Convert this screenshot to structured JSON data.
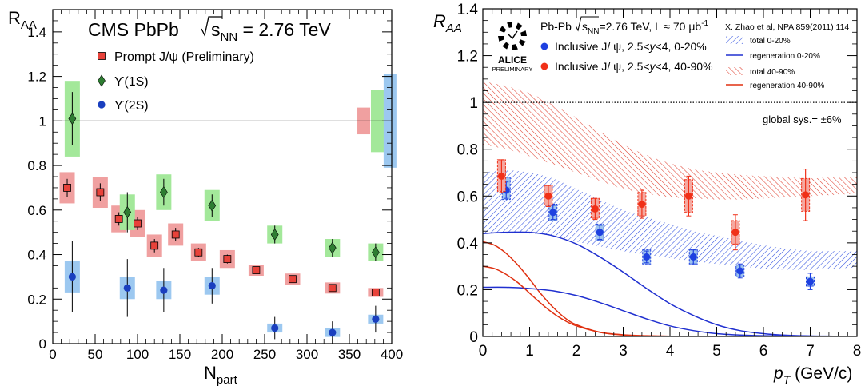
{
  "chart_data": [
    {
      "type": "scatter",
      "title": "CMS PbPb",
      "energy_label": "√sNN = 2.76 TeV",
      "energy_sqrt": "s",
      "energy_sub": "NN",
      "energy_value": " = 2.76 TeV",
      "ylabel_main": "R",
      "ylabel_sub": "AA",
      "xlabel_main": "N",
      "xlabel_sub": "part",
      "xlim": [
        0,
        400
      ],
      "ylim": [
        0,
        1.5
      ],
      "xticks": [
        0,
        50,
        100,
        150,
        200,
        250,
        300,
        350,
        400
      ],
      "yticks": [
        0,
        0.2,
        0.4,
        0.6,
        0.8,
        1,
        1.2,
        1.4
      ],
      "reference_line": 1,
      "legend_position": "top-left",
      "series": [
        {
          "name": "Prompt J/ψ (Preliminary)",
          "marker": "square",
          "color": "#e8423a",
          "box_color": "#f0a0a0",
          "points": [
            {
              "x": 17,
              "y": 0.7,
              "err": 0.04,
              "sys": 0.07
            },
            {
              "x": 56,
              "y": 0.68,
              "err": 0.04,
              "sys": 0.07
            },
            {
              "x": 78,
              "y": 0.56,
              "err": 0.03,
              "sys": 0.06
            },
            {
              "x": 100,
              "y": 0.54,
              "err": 0.03,
              "sys": 0.06
            },
            {
              "x": 120,
              "y": 0.44,
              "err": 0.03,
              "sys": 0.05
            },
            {
              "x": 145,
              "y": 0.49,
              "err": 0.03,
              "sys": 0.05
            },
            {
              "x": 172,
              "y": 0.41,
              "err": 0.02,
              "sys": 0.04
            },
            {
              "x": 206,
              "y": 0.38,
              "err": 0.02,
              "sys": 0.04
            },
            {
              "x": 240,
              "y": 0.33,
              "err": 0.01,
              "sys": 0.025
            },
            {
              "x": 283,
              "y": 0.29,
              "err": 0.01,
              "sys": 0.025
            },
            {
              "x": 330,
              "y": 0.25,
              "err": 0.01,
              "sys": 0.025
            },
            {
              "x": 381,
              "y": 0.23,
              "err": 0.01,
              "sys": 0.02
            }
          ]
        },
        {
          "name": "ϒ(1S)",
          "marker": "diamond",
          "color": "#2e7d32",
          "box_color": "#a3e89a",
          "points": [
            {
              "x": 23,
              "y": 1.01,
              "err": 0.12,
              "sys": 0.17
            },
            {
              "x": 88,
              "y": 0.59,
              "err": 0.09,
              "sys": 0.08
            },
            {
              "x": 131,
              "y": 0.68,
              "err": 0.06,
              "sys": 0.08
            },
            {
              "x": 188,
              "y": 0.62,
              "err": 0.05,
              "sys": 0.07
            },
            {
              "x": 262,
              "y": 0.49,
              "err": 0.04,
              "sys": 0.04
            },
            {
              "x": 330,
              "y": 0.43,
              "err": 0.04,
              "sys": 0.04
            },
            {
              "x": 381,
              "y": 0.41,
              "err": 0.04,
              "sys": 0.04
            }
          ]
        },
        {
          "name": "ϒ(2S)",
          "marker": "circle",
          "color": "#1a3fbf",
          "box_color": "#9cc8f0",
          "points": [
            {
              "x": 23,
              "y": 0.3,
              "err": 0.16,
              "sys": 0.07
            },
            {
              "x": 88,
              "y": 0.25,
              "err": 0.13,
              "sys": 0.05
            },
            {
              "x": 131,
              "y": 0.24,
              "err": 0.1,
              "sys": 0.04
            },
            {
              "x": 188,
              "y": 0.26,
              "err": 0.08,
              "sys": 0.04
            },
            {
              "x": 262,
              "y": 0.07,
              "err": 0.05,
              "sys": 0.02
            },
            {
              "x": 330,
              "y": 0.05,
              "err": 0.05,
              "sys": 0.02
            },
            {
              "x": 381,
              "y": 0.11,
              "err": 0.06,
              "sys": 0.02
            }
          ]
        }
      ],
      "global_uncertainty_boxes": [
        {
          "series": "Prompt J/ψ",
          "x": 367,
          "y": 1.0,
          "half_height": 0.06,
          "color": "#f0a0a0"
        },
        {
          "series": "ϒ(1S)",
          "x": 383,
          "y": 1.0,
          "half_height": 0.14,
          "color": "#a3e89a"
        },
        {
          "series": "ϒ(2S)",
          "x": 398,
          "y": 1.0,
          "half_height": 0.21,
          "color": "#9cc8f0"
        }
      ]
    },
    {
      "type": "scatter",
      "ylabel_main": "R",
      "ylabel_sub": "AA",
      "xlabel_main": "p",
      "xlabel_sub": "T",
      "xlabel_unit": " (GeV/c)",
      "xlim": [
        0,
        8
      ],
      "ylim": [
        0,
        1.4
      ],
      "xticks": [
        0,
        1,
        2,
        3,
        4,
        5,
        6,
        7,
        8
      ],
      "yticks": [
        0,
        0.2,
        0.4,
        0.6,
        0.8,
        1,
        1.2,
        1.4
      ],
      "reference_line": 1,
      "logo_text": "ALICE",
      "logo_subtext": "PRELIMINARY",
      "header_prefix": "Pb-Pb ",
      "header_sqrt": "s",
      "header_sub": "NN",
      "header_suffix": "=2.76 TeV, L ≈ 70 μb",
      "header_sup": "-1",
      "reference": "X. Zhao et al, NPA 859(2011) 114",
      "global_sys": "global sys.=  ±6%",
      "legend_position": "top-left",
      "model_legend_position": "top-right",
      "series": [
        {
          "name": "Inclusive J/ ψ, 2.5<y<4, 0-20%",
          "name_prefix": "Inclusive J/ ψ, 2.5<",
          "name_var": "y",
          "name_suffix": "<4, 0-20%",
          "color": "#1e40e0",
          "points": [
            {
              "x": 0.5,
              "y": 0.625,
              "err": 0.035,
              "sys_lo": 0.04,
              "sys_hi": 0.055
            },
            {
              "x": 1.5,
              "y": 0.53,
              "err": 0.03,
              "sys_lo": 0.035,
              "sys_hi": 0.035
            },
            {
              "x": 2.5,
              "y": 0.445,
              "err": 0.03,
              "sys_lo": 0.035,
              "sys_hi": 0.035
            },
            {
              "x": 3.5,
              "y": 0.34,
              "err": 0.025,
              "sys_lo": 0.03,
              "sys_hi": 0.03
            },
            {
              "x": 4.5,
              "y": 0.34,
              "err": 0.03,
              "sys_lo": 0.03,
              "sys_hi": 0.03
            },
            {
              "x": 5.5,
              "y": 0.28,
              "err": 0.03,
              "sys_lo": 0.025,
              "sys_hi": 0.025
            },
            {
              "x": 7.0,
              "y": 0.235,
              "err": 0.035,
              "sys_lo": 0.02,
              "sys_hi": 0.02
            }
          ]
        },
        {
          "name": "Inclusive J/ ψ, 2.5<y<4, 40-90%",
          "name_prefix": "Inclusive J/ ψ, 2.5<",
          "name_var": "y",
          "name_suffix": "<4, 40-90%",
          "color": "#f03018",
          "points": [
            {
              "x": 0.4,
              "y": 0.685,
              "err": 0.07,
              "sys_lo": 0.065,
              "sys_hi": 0.07
            },
            {
              "x": 1.4,
              "y": 0.6,
              "err": 0.045,
              "sys_lo": 0.04,
              "sys_hi": 0.045
            },
            {
              "x": 2.4,
              "y": 0.545,
              "err": 0.045,
              "sys_lo": 0.04,
              "sys_hi": 0.045
            },
            {
              "x": 3.4,
              "y": 0.565,
              "err": 0.06,
              "sys_lo": 0.05,
              "sys_hi": 0.05
            },
            {
              "x": 4.4,
              "y": 0.6,
              "err": 0.085,
              "sys_lo": 0.07,
              "sys_hi": 0.07
            },
            {
              "x": 5.4,
              "y": 0.445,
              "err": 0.075,
              "sys_lo": 0.05,
              "sys_hi": 0.05
            },
            {
              "x": 6.9,
              "y": 0.605,
              "err": 0.11,
              "sys_lo": 0.07,
              "sys_hi": 0.07
            }
          ]
        }
      ],
      "models": [
        {
          "name": "total 0-20%",
          "kind": "band",
          "color": "#3050e0",
          "x": [
            0,
            0.5,
            1,
            1.5,
            2,
            2.5,
            3,
            3.5,
            4,
            4.5,
            5,
            5.5,
            6,
            6.5,
            7,
            7.5,
            8
          ],
          "lower": [
            0.44,
            0.44,
            0.44,
            0.43,
            0.405,
            0.385,
            0.365,
            0.35,
            0.335,
            0.32,
            0.31,
            0.3,
            0.29,
            0.285,
            0.285,
            0.29,
            0.295
          ],
          "upper": [
            0.7,
            0.71,
            0.7,
            0.675,
            0.63,
            0.585,
            0.54,
            0.51,
            0.48,
            0.45,
            0.43,
            0.41,
            0.39,
            0.375,
            0.365,
            0.365,
            0.365
          ]
        },
        {
          "name": "regeneration 0-20%",
          "kind": "line",
          "color": "#2030d0",
          "x": [
            0,
            0.5,
            1,
            1.5,
            2,
            2.5,
            3,
            3.5,
            4,
            4.5,
            5,
            5.5,
            6,
            6.5,
            7,
            7.5,
            8
          ],
          "y": [
            0.44,
            0.445,
            0.445,
            0.43,
            0.395,
            0.34,
            0.275,
            0.205,
            0.14,
            0.09,
            0.05,
            0.025,
            0.012,
            0.005,
            0.002,
            0.001,
            0.0
          ]
        },
        {
          "name": "total 40-90%",
          "kind": "band",
          "color": "#e04030",
          "x": [
            0,
            0.5,
            1,
            1.5,
            2,
            2.5,
            3,
            3.5,
            4,
            4.5,
            5,
            5.5,
            6,
            6.5,
            7,
            7.5,
            8
          ],
          "lower": [
            0.82,
            0.8,
            0.77,
            0.735,
            0.7,
            0.665,
            0.63,
            0.61,
            0.595,
            0.59,
            0.585,
            0.585,
            0.59,
            0.595,
            0.6,
            0.605,
            0.61
          ],
          "upper": [
            1.09,
            1.07,
            1.04,
            0.99,
            0.935,
            0.875,
            0.82,
            0.775,
            0.74,
            0.715,
            0.7,
            0.69,
            0.685,
            0.68,
            0.675,
            0.68,
            0.68
          ]
        },
        {
          "name": "regeneration 40-90%",
          "kind": "line",
          "color": "#e03010",
          "x": [
            0,
            0.25,
            0.5,
            0.75,
            1,
            1.25,
            1.5,
            1.75,
            2,
            2.5,
            3,
            3.5,
            4,
            5,
            6,
            8
          ],
          "y": [
            0.405,
            0.39,
            0.355,
            0.305,
            0.245,
            0.18,
            0.125,
            0.08,
            0.05,
            0.018,
            0.006,
            0.002,
            0.001,
            0.0,
            0.0,
            0.0
          ]
        }
      ],
      "extra_curves": [
        {
          "name": "primordial 0-20%",
          "color": "#2030d0",
          "x": [
            0,
            0.5,
            1,
            1.5,
            2,
            2.5,
            3,
            3.5,
            4,
            4.5,
            5,
            5.5,
            6,
            7,
            8
          ],
          "y": [
            0.21,
            0.21,
            0.205,
            0.195,
            0.175,
            0.145,
            0.11,
            0.075,
            0.045,
            0.025,
            0.012,
            0.006,
            0.003,
            0.001,
            0.0
          ]
        },
        {
          "name": "primordial 40-90%",
          "color": "#e03010",
          "x": [
            0,
            0.25,
            0.5,
            0.75,
            1,
            1.25,
            1.5,
            1.75,
            2,
            2.5,
            3,
            3.5,
            4,
            5,
            8
          ],
          "y": [
            0.3,
            0.29,
            0.265,
            0.23,
            0.185,
            0.14,
            0.1,
            0.068,
            0.045,
            0.018,
            0.007,
            0.003,
            0.001,
            0.0,
            0.0
          ]
        }
      ]
    }
  ]
}
